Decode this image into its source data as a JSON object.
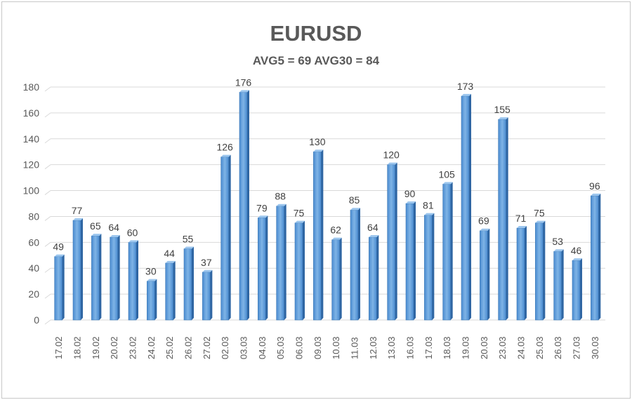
{
  "chart_data": {
    "type": "bar",
    "title": "EURUSD",
    "subtitle": "AVG5 = 69 AVG30 = 84",
    "xlabel": "",
    "ylabel": "",
    "ylim": [
      0,
      180
    ],
    "yticks": [
      0,
      20,
      40,
      60,
      80,
      100,
      120,
      140,
      160,
      180
    ],
    "grid": true,
    "bar_color": "#5b9bd5",
    "categories": [
      "17.02",
      "18.02",
      "19.02",
      "20.02",
      "23.02",
      "24.02",
      "25.02",
      "26.02",
      "27.02",
      "02.03",
      "03.03",
      "04.03",
      "05.03",
      "06.03",
      "09.03",
      "10.03",
      "11.03",
      "12.03",
      "13.03",
      "16.03",
      "17.03",
      "18.03",
      "19.03",
      "20.03",
      "23.03",
      "24.03",
      "25.03",
      "26.03",
      "27.03",
      "30.03"
    ],
    "values": [
      49,
      77,
      65,
      64,
      60,
      30,
      44,
      55,
      37,
      126,
      176,
      79,
      88,
      75,
      130,
      62,
      85,
      64,
      120,
      90,
      81,
      105,
      173,
      69,
      155,
      71,
      75,
      53,
      46,
      96
    ]
  }
}
